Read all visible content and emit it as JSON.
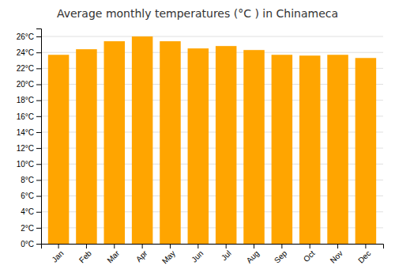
{
  "chart_data": {
    "type": "bar",
    "title": "Average monthly temperatures (°C ) in Chinameca",
    "categories": [
      "Jan",
      "Feb",
      "Mar",
      "Apr",
      "May",
      "Jun",
      "Jul",
      "Aug",
      "Sep",
      "Oct",
      "Nov",
      "Dec"
    ],
    "values": [
      23.7,
      24.4,
      25.4,
      26.0,
      25.4,
      24.5,
      24.8,
      24.3,
      23.7,
      23.6,
      23.7,
      23.3
    ],
    "color": "#FFA500",
    "ylim": [
      0,
      27
    ],
    "yticks": [
      {
        "value": 0,
        "label": "0°C"
      },
      {
        "value": 2,
        "label": "2°C"
      },
      {
        "value": 4,
        "label": "4°C"
      },
      {
        "value": 6,
        "label": "6°C"
      },
      {
        "value": 8,
        "label": "8°C"
      },
      {
        "value": 10,
        "label": "10°C"
      },
      {
        "value": 12,
        "label": "12°C"
      },
      {
        "value": 14,
        "label": "14°C"
      },
      {
        "value": 16,
        "label": "16°C"
      },
      {
        "value": 18,
        "label": "18°C"
      },
      {
        "value": 20,
        "label": "20°C"
      },
      {
        "value": 22,
        "label": "22°C"
      },
      {
        "value": 24,
        "label": "24°C"
      },
      {
        "value": 26,
        "label": "26°C"
      }
    ],
    "grid": true
  }
}
